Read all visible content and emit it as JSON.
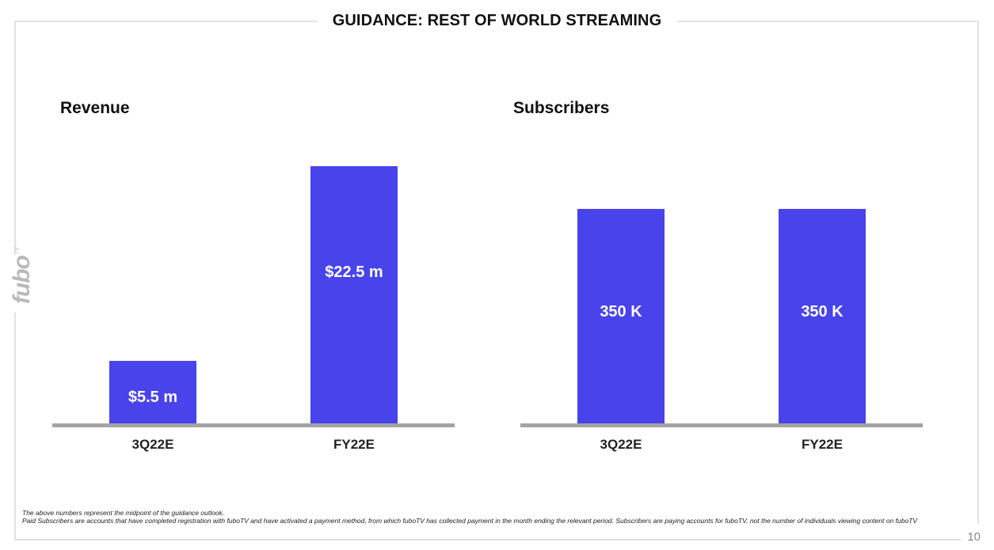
{
  "page": {
    "title": "GUIDANCE: REST OF WORLD STREAMING",
    "logo_text": "fubo",
    "logo_superscript": "TV",
    "page_number": "10",
    "footnote_1": "The above numbers represent the midpoint of the guidance outlook.",
    "footnote_2": "Paid Subscribers are accounts that have completed registration with fuboTV and have activated a payment method, from which fuboTV has collected payment in the month ending the relevant period. Subscribers are paying accounts for fuboTV, not the number of individuals viewing content on fuboTV",
    "colors": {
      "bar": "#4943eb",
      "baseline": "#a3a3a3",
      "frame": "#e2e2e2",
      "logo": "#b9b9b9"
    }
  },
  "chart_data": [
    {
      "type": "bar",
      "title": "Revenue",
      "categories": [
        "3Q22E",
        "FY22E"
      ],
      "values": [
        5.5,
        22.5
      ],
      "value_labels": [
        "$5.5 m",
        "$22.5 m"
      ],
      "unit": "$ m",
      "ylim": [
        0,
        22.5
      ],
      "grid": false
    },
    {
      "type": "bar",
      "title": "Subscribers",
      "categories": [
        "3Q22E",
        "FY22E"
      ],
      "values": [
        350,
        350
      ],
      "value_labels": [
        "350 K",
        "350 K"
      ],
      "unit": "K",
      "ylim": [
        0,
        420
      ],
      "grid": false
    }
  ]
}
